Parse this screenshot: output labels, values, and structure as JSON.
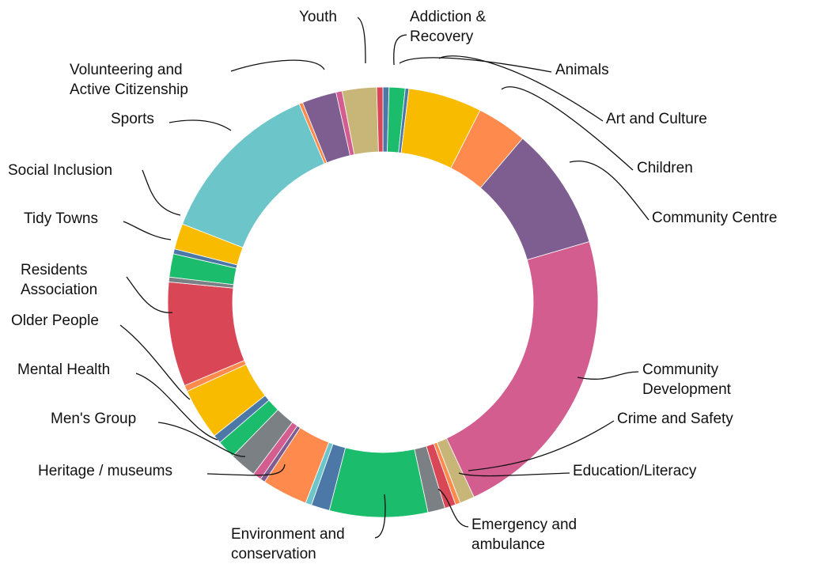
{
  "chart_data": {
    "type": "pie",
    "variant": "donut",
    "title": "",
    "slices": [
      {
        "label": "Addiction & Recovery",
        "value": 0.5,
        "color": "#4c78a8"
      },
      {
        "label": "",
        "value": 1.3,
        "color": "#1bbc6b"
      },
      {
        "label": "Animals",
        "value": 0.3,
        "color": "#4c78a8"
      },
      {
        "label": "Art and Culture",
        "value": 6.0,
        "color": "#f8bb00"
      },
      {
        "label": "Children",
        "value": 4.1,
        "color": "#ff8a4d"
      },
      {
        "label": "Community Centre",
        "value": 10.0,
        "color": "#7e5d91"
      },
      {
        "label": "Community Development",
        "value": 24.5,
        "color": "#d35d8f"
      },
      {
        "label": "Crime and Safety",
        "value": 1.2,
        "color": "#c8b679"
      },
      {
        "label": "Education/Literacy",
        "value": 0.4,
        "color": "#ff8a4d"
      },
      {
        "label": "",
        "value": 0.9,
        "color": "#d94757"
      },
      {
        "label": "Emergency and ambulance",
        "value": 1.4,
        "color": "#7a8084"
      },
      {
        "label": "Environment and conservation",
        "value": 8.0,
        "color": "#1bbc6b"
      },
      {
        "label": "",
        "value": 1.5,
        "color": "#4c78a8"
      },
      {
        "label": "",
        "value": 0.5,
        "color": "#6cc5c9"
      },
      {
        "label": "Heritage / museums",
        "value": 3.7,
        "color": "#ff8a4d"
      },
      {
        "label": "",
        "value": 0.4,
        "color": "#7e5d91"
      },
      {
        "label": "",
        "value": 0.7,
        "color": "#d35d8f"
      },
      {
        "label": "Men's Group",
        "value": 2.2,
        "color": "#7a8084"
      },
      {
        "label": "Mental Health",
        "value": 1.5,
        "color": "#1bbc6b"
      },
      {
        "label": "",
        "value": 0.7,
        "color": "#4c78a8"
      },
      {
        "label": "Older People",
        "value": 4.2,
        "color": "#f8bb00"
      },
      {
        "label": "",
        "value": 0.5,
        "color": "#ff8a4d"
      },
      {
        "label": "Residents Association",
        "value": 8.5,
        "color": "#d94757"
      },
      {
        "label": "",
        "value": 0.4,
        "color": "#7a8084"
      },
      {
        "label": "Tidy Towns",
        "value": 1.9,
        "color": "#1bbc6b"
      },
      {
        "label": "",
        "value": 0.4,
        "color": "#4c78a8"
      },
      {
        "label": "Social Inclusion",
        "value": 2.1,
        "color": "#f8bb00"
      },
      {
        "label": "Sports",
        "value": 13.8,
        "color": "#6cc5c9"
      },
      {
        "label": "",
        "value": 0.3,
        "color": "#ff8a4d"
      },
      {
        "label": "Volunteering and Active Citizenship",
        "value": 2.8,
        "color": "#7e5d91"
      },
      {
        "label": "",
        "value": 0.5,
        "color": "#d35d8f"
      },
      {
        "label": "Youth",
        "value": 2.8,
        "color": "#c8b679"
      },
      {
        "label": "",
        "value": 0.5,
        "color": "#d94757"
      }
    ],
    "labels": [
      {
        "lines": [
          "Addiction &",
          "Recovery"
        ]
      },
      {
        "lines": [
          "Animals"
        ]
      },
      {
        "lines": [
          "Art and Culture"
        ]
      },
      {
        "lines": [
          "Children"
        ]
      },
      {
        "lines": [
          "Community Centre"
        ]
      },
      {
        "lines": [
          "Community",
          "Development"
        ]
      },
      {
        "lines": [
          "Crime and Safety"
        ]
      },
      {
        "lines": [
          "Education/Literacy"
        ]
      },
      {
        "lines": [
          "Emergency and",
          "ambulance"
        ]
      },
      {
        "lines": [
          "Environment and",
          "conservation"
        ]
      },
      {
        "lines": [
          "Heritage / museums"
        ]
      },
      {
        "lines": [
          "Men's Group"
        ]
      },
      {
        "lines": [
          "Mental Health"
        ]
      },
      {
        "lines": [
          "Older People"
        ]
      },
      {
        "lines": [
          "Residents",
          "Association"
        ]
      },
      {
        "lines": [
          "Tidy Towns"
        ]
      },
      {
        "lines": [
          "Social Inclusion"
        ]
      },
      {
        "lines": [
          "Sports"
        ]
      },
      {
        "lines": [
          "Volunteering and",
          "Active Citizenship"
        ]
      },
      {
        "lines": [
          "Youth"
        ]
      }
    ]
  }
}
